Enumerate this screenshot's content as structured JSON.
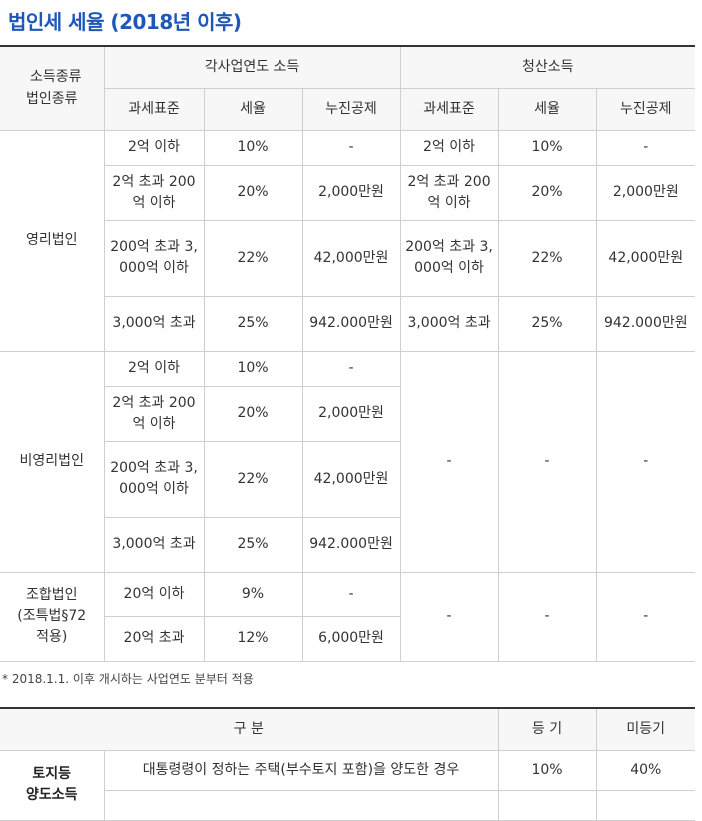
{
  "title": "법인세 세율 (2018년 이후)",
  "header": {
    "corner_line1": "소득종류",
    "corner_line2": "법인종류",
    "group1": "각사업연도 소득",
    "group2": "청산소득",
    "col_base": "과세표준",
    "col_rate": "세율",
    "col_deduct": "누진공제"
  },
  "profit": {
    "label": "영리법인",
    "rows": [
      {
        "base": "2억 이하",
        "rate": "10%",
        "deduct": "-",
        "lbase": "2억 이하",
        "lrate": "10%",
        "ldeduct": "-"
      },
      {
        "base": "2억 초과 200억 이하",
        "rate": "20%",
        "deduct": "2,000만원",
        "lbase": "2억 초과 200억 이하",
        "lrate": "20%",
        "ldeduct": "2,000만원"
      },
      {
        "base": "200억 초과 3,000억 이하",
        "rate": "22%",
        "deduct": "42,000만원",
        "lbase": "200억 초과 3,000억 이하",
        "lrate": "22%",
        "ldeduct": "42,000만원"
      },
      {
        "base": "3,000억 초과",
        "rate": "25%",
        "deduct": "942.000만원",
        "lbase": "3,000억 초과",
        "lrate": "25%",
        "ldeduct": "942.000만원"
      }
    ]
  },
  "nonprofit": {
    "label": "비영리법인",
    "rows": [
      {
        "base": "2억 이하",
        "rate": "10%",
        "deduct": "-"
      },
      {
        "base": "2억 초과 200억 이하",
        "rate": "20%",
        "deduct": "2,000만원"
      },
      {
        "base": "200억 초과 3,000억 이하",
        "rate": "22%",
        "deduct": "42,000만원"
      },
      {
        "base": "3,000억 초과",
        "rate": "25%",
        "deduct": "942.000만원"
      }
    ],
    "liq_base": "-",
    "liq_rate": "-",
    "liq_deduct": "-"
  },
  "coop": {
    "label_line1": "조합법인",
    "label_line2": "(조특법§72",
    "label_line3": "적용)",
    "rows": [
      {
        "base": "20억 이하",
        "rate": "9%",
        "deduct": "-"
      },
      {
        "base": "20억 초과",
        "rate": "12%",
        "deduct": "6,000만원"
      }
    ],
    "liq_base": "-",
    "liq_rate": "-",
    "liq_deduct": "-"
  },
  "note": "* 2018.1.1. 이후 개시하는 사업연도 분부터 적용",
  "land": {
    "header_div": "구 분",
    "header_reg": "등 기",
    "header_unreg": "미등기",
    "label_line1": "토지등",
    "label_line2": "양도소득",
    "row_desc": "대통령령이 정하는 주택(부수토지 포함)을 양도한 경우",
    "row_reg": "10%",
    "row_unreg": "40%"
  }
}
